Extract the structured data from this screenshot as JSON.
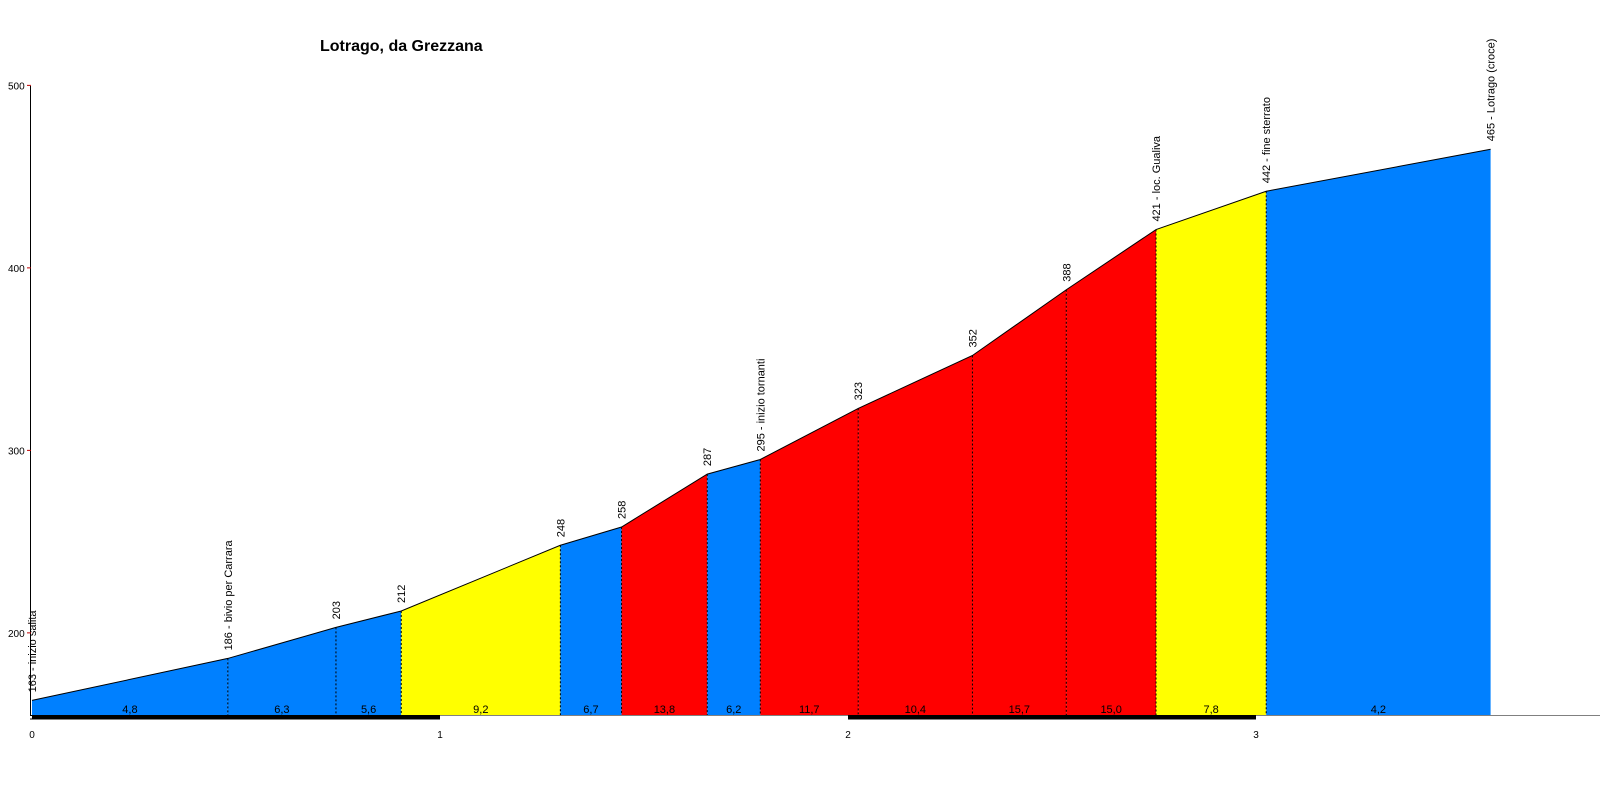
{
  "chart_data": {
    "type": "area",
    "title": "Lotrago, da Grezzana",
    "xlabel": "",
    "ylabel": "",
    "xlim": [
      0,
      3.75
    ],
    "ylim": [
      155,
      500
    ],
    "x_ticks": [
      0,
      1,
      2,
      3
    ],
    "y_ticks": [
      200,
      300,
      400,
      500
    ],
    "grid": false,
    "colors": {
      "low": "#0080ff",
      "medium": "#ffff00",
      "high": "#ff0000"
    },
    "points": [
      {
        "x": 0.0,
        "y": 163,
        "label": "163 - inizio salita"
      },
      {
        "x": 0.48,
        "y": 186,
        "label": "186 - bivio per Carrara"
      },
      {
        "x": 0.745,
        "y": 203,
        "label": "203"
      },
      {
        "x": 0.905,
        "y": 212,
        "label": "212"
      },
      {
        "x": 1.295,
        "y": 248,
        "label": "248"
      },
      {
        "x": 1.445,
        "y": 258,
        "label": "258"
      },
      {
        "x": 1.655,
        "y": 287,
        "label": "287"
      },
      {
        "x": 1.785,
        "y": 295,
        "label": "295 - inizio tornanti"
      },
      {
        "x": 2.025,
        "y": 323,
        "label": "323"
      },
      {
        "x": 2.305,
        "y": 352,
        "label": "352"
      },
      {
        "x": 2.535,
        "y": 388,
        "label": "388"
      },
      {
        "x": 2.755,
        "y": 421,
        "label": "421 - loc. Gualiva"
      },
      {
        "x": 3.025,
        "y": 442,
        "label": "442 - fine sterrato"
      },
      {
        "x": 3.575,
        "y": 465,
        "label": "465 - Lotrago (croce)"
      }
    ],
    "segments": [
      {
        "grade": "4,8",
        "level": "low"
      },
      {
        "grade": "6,3",
        "level": "low"
      },
      {
        "grade": "5,6",
        "level": "low"
      },
      {
        "grade": "9,2",
        "level": "medium"
      },
      {
        "grade": "6,7",
        "level": "low"
      },
      {
        "grade": "13,8",
        "level": "high"
      },
      {
        "grade": "6,2",
        "level": "low"
      },
      {
        "grade": "11,7",
        "level": "high"
      },
      {
        "grade": "10,4",
        "level": "high"
      },
      {
        "grade": "15,7",
        "level": "high"
      },
      {
        "grade": "15,0",
        "level": "high"
      },
      {
        "grade": "7,8",
        "level": "medium"
      },
      {
        "grade": "4,2",
        "level": "low"
      }
    ]
  }
}
